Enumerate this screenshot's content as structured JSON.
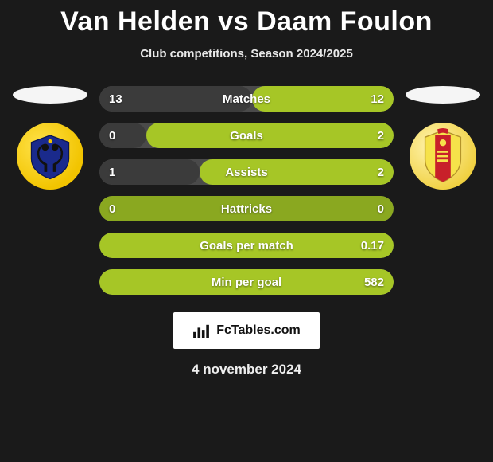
{
  "title": {
    "player1": "Van Helden",
    "vs": "vs",
    "player2": "Daam Foulon"
  },
  "subtitle": "Club competitions, Season 2024/2025",
  "colors": {
    "accent_green": "#a6c626",
    "accent_dark": "#3b3b3b",
    "row_bg": "#4a4a4a",
    "empty_green_tint": "#8aa820"
  },
  "crests": {
    "left": {
      "bg": "#f2c400",
      "inner": "#1a2a8c",
      "name": "stvv-crest-icon"
    },
    "right": {
      "bg": "#f0d040",
      "stripe": "#c8202a",
      "name": "mechelen-crest-icon"
    }
  },
  "stats": [
    {
      "label": "Matches",
      "left_val": "13",
      "right_val": "12",
      "left_pct": 52,
      "right_pct": 48
    },
    {
      "label": "Goals",
      "left_val": "0",
      "right_val": "2",
      "left_pct": 16,
      "right_pct": 84
    },
    {
      "label": "Assists",
      "left_val": "1",
      "right_val": "2",
      "left_pct": 34,
      "right_pct": 66
    },
    {
      "label": "Hattricks",
      "left_val": "0",
      "right_val": "0",
      "left_pct": 50,
      "right_pct": 50
    },
    {
      "label": "Goals per match",
      "left_val": "",
      "right_val": "0.17",
      "left_pct": 0,
      "right_pct": 100
    },
    {
      "label": "Min per goal",
      "left_val": "",
      "right_val": "582",
      "left_pct": 0,
      "right_pct": 100
    }
  ],
  "footer": {
    "site": "FcTables.com"
  },
  "date": "4 november 2024"
}
